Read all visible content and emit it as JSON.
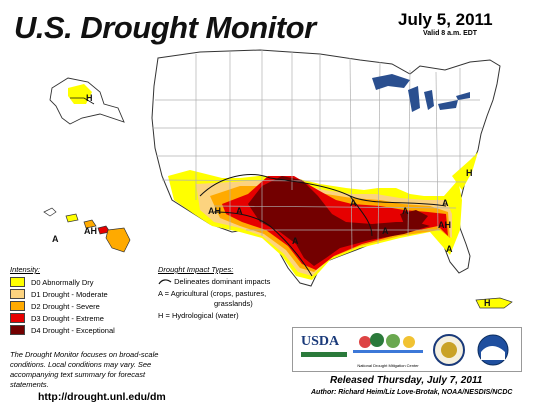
{
  "header": {
    "title": "U.S. Drought Monitor",
    "date": "July 5, 2011",
    "valid": "Valid 8 a.m. EDT"
  },
  "colors": {
    "d0": "#ffff00",
    "d1": "#fcd37f",
    "d2": "#ffaa00",
    "d3": "#e60000",
    "d4": "#730000",
    "state_line": "#b0b0b0",
    "lakes": "#2a4f8f",
    "impact_line": "#111111"
  },
  "legend": {
    "title": "Intensity:",
    "items": [
      {
        "label": "D0 Abnormally Dry",
        "color": "#ffff00"
      },
      {
        "label": "D1 Drought - Moderate",
        "color": "#fcd37f"
      },
      {
        "label": "D2 Drought - Severe",
        "color": "#ffaa00"
      },
      {
        "label": "D3 Drought - Extreme",
        "color": "#e60000"
      },
      {
        "label": "D4 Drought - Exceptional",
        "color": "#730000"
      }
    ]
  },
  "impacts": {
    "title": "Drought Impact Types:",
    "line": "Delineates dominant impacts",
    "a": "A = Agricultural (crops, pastures,",
    "a2": "grasslands)",
    "h": "H = Hydrological (water)"
  },
  "map_labels": {
    "ak": "H",
    "hi_ah": "AH",
    "hi_a": "A",
    "sw_ah": "AH",
    "sw_a": "A",
    "tx_a": "A",
    "se_a": "A",
    "mid_a": "A",
    "nc_a": "A",
    "east_a": "A",
    "east_ah": "AH",
    "fl_a": "A",
    "pr": "H",
    "nc_h": "H"
  },
  "note": "The Drought Monitor focuses on broad-scale conditions. Local conditions may vary. See accompanying text summary for forecast statements.",
  "logos": {
    "usda": "USDA",
    "ndmc": "National Drought Mitigation Center"
  },
  "url": "http://drought.unl.edu/dm",
  "released": "Released Thursday, July 7, 2011",
  "author": "Author: Richard Heim/Liz Love-Brotak, NOAA/NESDIS/NCDC"
}
